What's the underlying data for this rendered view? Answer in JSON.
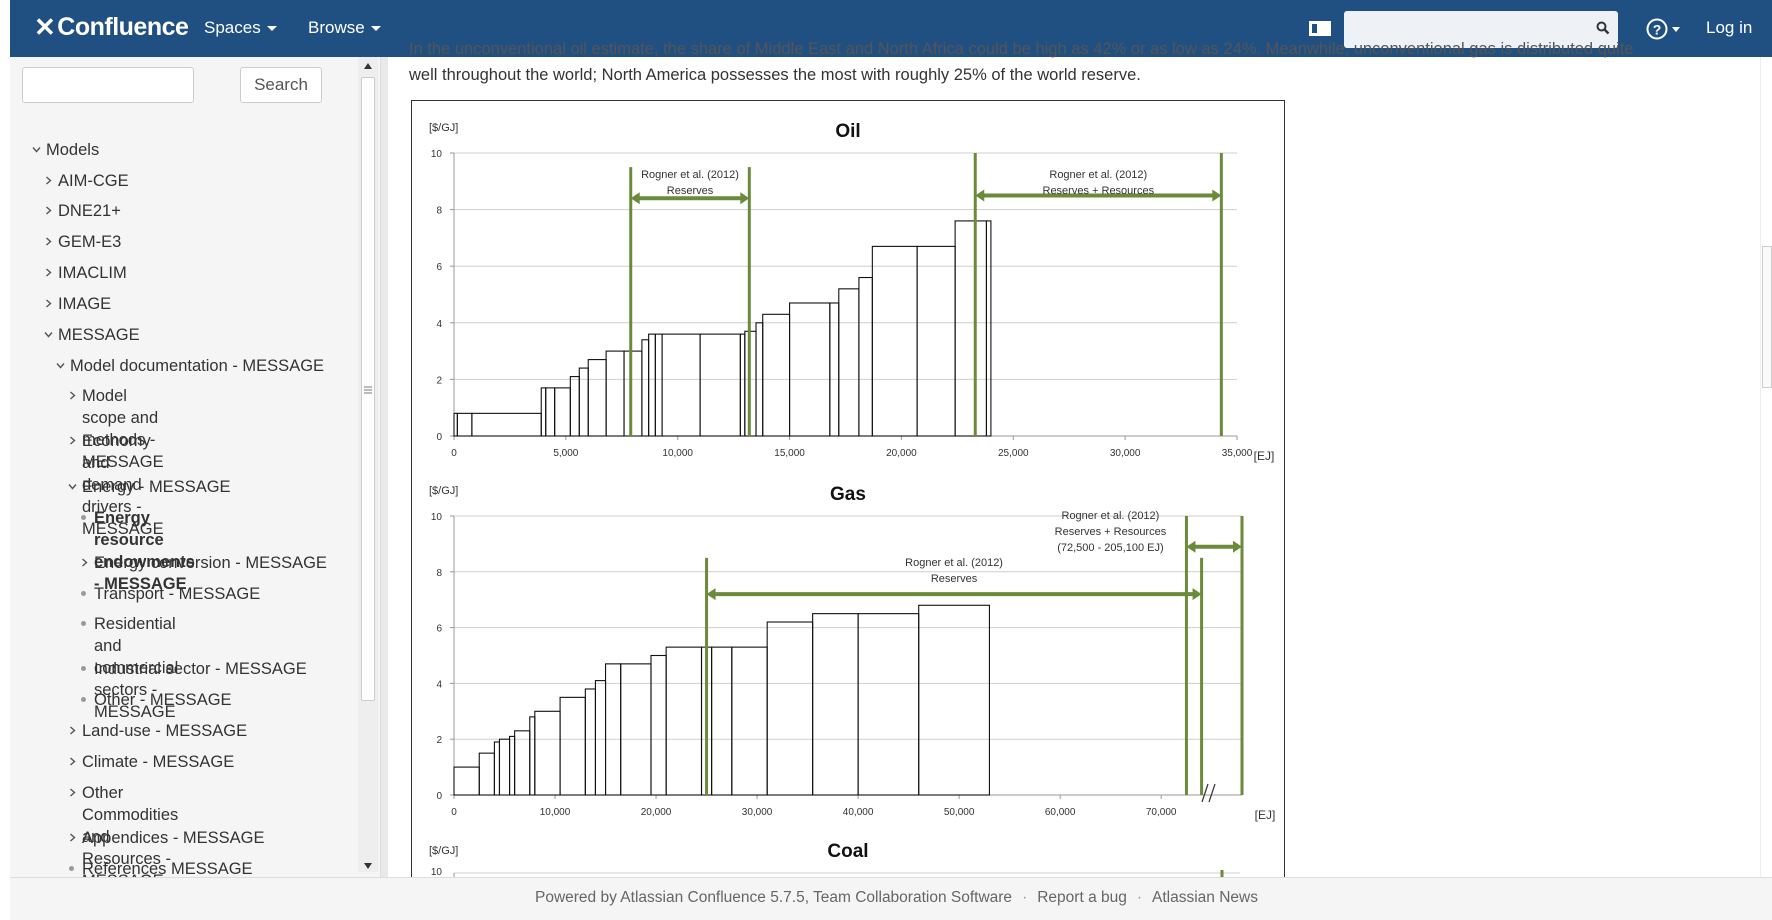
{
  "header": {
    "logo_text": "Confluence",
    "nav": [
      "Spaces",
      "Browse"
    ],
    "login": "Log in",
    "search_placeholder": ""
  },
  "sidebar": {
    "search_button": "Search",
    "search_placeholder": "",
    "items": [
      {
        "label": "Models",
        "level": 0,
        "state": "expanded"
      },
      {
        "label": "AIM-CGE",
        "level": 1,
        "state": "collapsed"
      },
      {
        "label": "DNE21+",
        "level": 1,
        "state": "collapsed"
      },
      {
        "label": "GEM-E3",
        "level": 1,
        "state": "collapsed"
      },
      {
        "label": "IMACLIM",
        "level": 1,
        "state": "collapsed"
      },
      {
        "label": "IMAGE",
        "level": 1,
        "state": "collapsed"
      },
      {
        "label": "MESSAGE",
        "level": 1,
        "state": "expanded"
      },
      {
        "label": "Model documentation - MESSAGE",
        "level": 2,
        "state": "expanded"
      },
      {
        "label": "Model scope and methods - MESSAGE",
        "level": 3,
        "state": "collapsed"
      },
      {
        "label": "Economy and demand drivers - MESSAGE",
        "level": 3,
        "state": "collapsed"
      },
      {
        "label": "Energy - MESSAGE",
        "level": 3,
        "state": "expanded"
      },
      {
        "label": "Energy resource endowments - MESSAGE",
        "level": 4,
        "state": "leaf",
        "current": true
      },
      {
        "label": "Energy conversion - MESSAGE",
        "level": 4,
        "state": "collapsed"
      },
      {
        "label": "Transport - MESSAGE",
        "level": 4,
        "state": "leaf"
      },
      {
        "label": "Residential and commercial sectors - MESSAGE",
        "level": 4,
        "state": "leaf"
      },
      {
        "label": "Industrial sector - MESSAGE",
        "level": 4,
        "state": "leaf"
      },
      {
        "label": "Other - MESSAGE",
        "level": 4,
        "state": "leaf"
      },
      {
        "label": "Land-use - MESSAGE",
        "level": 3,
        "state": "collapsed"
      },
      {
        "label": "Climate - MESSAGE",
        "level": 3,
        "state": "collapsed"
      },
      {
        "label": "Other Commodities and Resources - MESSAGE",
        "level": 3,
        "state": "collapsed"
      },
      {
        "label": "Appendices - MESSAGE",
        "level": 3,
        "state": "collapsed"
      },
      {
        "label": "References MESSAGE",
        "level": 3,
        "state": "leaf"
      }
    ]
  },
  "content": {
    "partial_line": "In the unconventional oil estimate, the share of Middle East and North Africa could be high as 42% or as low as 24%. Meanwhile, unconventional gas is distributed quite",
    "line2": "well throughout the world; North America possesses the most with roughly 25% of the world reserve."
  },
  "chart_data": [
    {
      "type": "bar",
      "title": "Oil",
      "ylabel": "[$/GJ]",
      "xlabel": "[EJ]",
      "xlim": [
        0,
        35000
      ],
      "ylim": [
        0,
        10
      ],
      "x_ticks": [
        "0",
        "5,000",
        "10,000",
        "15,000",
        "20,000",
        "25,000",
        "30,000",
        "35,000"
      ],
      "y_ticks": [
        "0",
        "2",
        "4",
        "6",
        "8",
        "10"
      ],
      "steps": [
        [
          0,
          150,
          0.8
        ],
        [
          150,
          800,
          0.8
        ],
        [
          800,
          3900,
          0.8
        ],
        [
          3900,
          4100,
          1.7
        ],
        [
          4100,
          4500,
          1.7
        ],
        [
          4500,
          5200,
          1.7
        ],
        [
          5200,
          5600,
          2.1
        ],
        [
          5600,
          6000,
          2.4
        ],
        [
          6000,
          6800,
          2.7
        ],
        [
          6800,
          7600,
          3.0
        ],
        [
          7600,
          8400,
          3.0
        ],
        [
          8400,
          8700,
          3.4
        ],
        [
          8700,
          9000,
          3.6
        ],
        [
          9000,
          9300,
          3.6
        ],
        [
          9300,
          11000,
          3.6
        ],
        [
          11000,
          12800,
          3.6
        ],
        [
          12800,
          13000,
          3.6
        ],
        [
          13000,
          13500,
          3.7
        ],
        [
          13500,
          13800,
          4.0
        ],
        [
          13800,
          15000,
          4.3
        ],
        [
          15000,
          16800,
          4.7
        ],
        [
          16800,
          17200,
          4.7
        ],
        [
          17200,
          18100,
          5.2
        ],
        [
          18100,
          18700,
          5.6
        ],
        [
          18700,
          20700,
          6.7
        ],
        [
          20700,
          22400,
          6.7
        ],
        [
          22400,
          23800,
          7.6
        ],
        [
          23800,
          24000,
          7.6
        ]
      ],
      "ranges": [
        {
          "label1": "Rogner et al. (2012)",
          "label2": "Reserves",
          "from": 7900,
          "to": 13200,
          "line_top": 9.5
        },
        {
          "label1": "Rogner et al. (2012)",
          "label2": "Reserves + Resources",
          "from": 23300,
          "to": 34300,
          "line_top": 10
        }
      ]
    },
    {
      "type": "bar",
      "title": "Gas",
      "ylabel": "[$/GJ]",
      "xlabel": "[EJ]",
      "xlim": [
        0,
        78000
      ],
      "ylim": [
        0,
        10
      ],
      "x_ticks": [
        "0",
        "10,000",
        "20,000",
        "30,000",
        "40,000",
        "50,000",
        "60,000",
        "70,000"
      ],
      "y_ticks": [
        "0",
        "2",
        "4",
        "6",
        "8",
        "10"
      ],
      "steps": [
        [
          0,
          2500,
          1.0
        ],
        [
          2500,
          4000,
          1.5
        ],
        [
          4000,
          4500,
          1.9
        ],
        [
          4500,
          5500,
          2.0
        ],
        [
          5500,
          6000,
          2.1
        ],
        [
          6000,
          7500,
          2.3
        ],
        [
          7500,
          8000,
          2.8
        ],
        [
          8000,
          10500,
          3.0
        ],
        [
          10500,
          13000,
          3.5
        ],
        [
          13000,
          14000,
          3.8
        ],
        [
          14000,
          15000,
          4.1
        ],
        [
          15000,
          16500,
          4.7
        ],
        [
          16500,
          19500,
          4.7
        ],
        [
          19500,
          21000,
          5.0
        ],
        [
          21000,
          24500,
          5.3
        ],
        [
          24500,
          25500,
          5.3
        ],
        [
          25500,
          27500,
          5.3
        ],
        [
          27500,
          31000,
          5.3
        ],
        [
          31000,
          35500,
          6.2
        ],
        [
          35500,
          40000,
          6.5
        ],
        [
          40000,
          46000,
          6.5
        ],
        [
          46000,
          53000,
          6.8
        ]
      ],
      "ranges": [
        {
          "label1": "Rogner et al. (2012)",
          "label2": "Reserves",
          "from": 25000,
          "to": 74000,
          "line_top": 8.5
        },
        {
          "label1": "Rogner et al. (2012)",
          "label2": "Reserves + Resources",
          "label3": "(72,500 - 205,100 EJ)",
          "from": 72500,
          "to": 78000,
          "line_top": 10
        }
      ]
    },
    {
      "type": "bar",
      "title": "Coal",
      "ylabel": "[$/GJ]",
      "y_ticks": [
        "10"
      ]
    }
  ],
  "footer": {
    "powered": "Powered by Atlassian Confluence 5.7.5, Team Collaboration Software",
    "report": "Report a bug",
    "news": "Atlassian News"
  }
}
